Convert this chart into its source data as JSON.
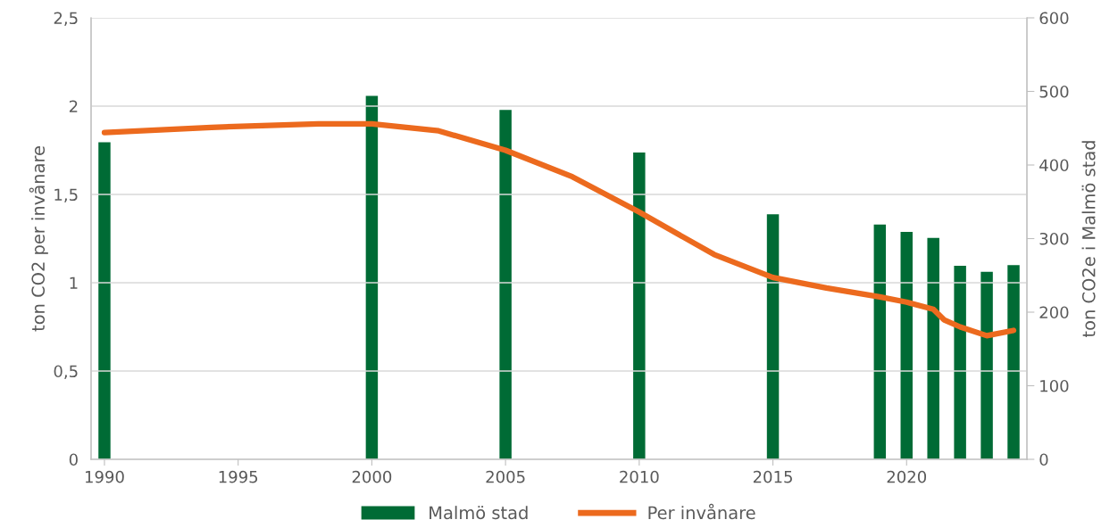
{
  "chart_data": {
    "type": "bar",
    "ylabel": "ton CO2 per invånare",
    "y2label": "ton CO2e i Malmö stad",
    "x": [
      1990,
      2000,
      2005,
      2010,
      2015,
      2019,
      2020,
      2021,
      2022,
      2023,
      2024
    ],
    "series": [
      {
        "name": "Malmö stad",
        "type": "bar",
        "axis": "y2",
        "color": "#006b35",
        "values": [
          431,
          494,
          475,
          417,
          333,
          319,
          309,
          301,
          263,
          255,
          264
        ]
      },
      {
        "name": "Per invånare",
        "type": "line",
        "color": "#ec6a1e",
        "x": [
          1990,
          1994,
          1998,
          2000,
          2002.5,
          2005,
          2007.5,
          2010,
          2012.8,
          2015,
          2017,
          2019,
          2020,
          2021,
          2021.4,
          2022,
          2023,
          2024
        ],
        "values": [
          1.85,
          1.88,
          1.9,
          1.9,
          1.86,
          1.75,
          1.6,
          1.4,
          1.16,
          1.03,
          0.97,
          0.92,
          0.89,
          0.85,
          0.79,
          0.75,
          0.7,
          0.73
        ]
      }
    ],
    "xlim": [
      1989.5,
      2024.5
    ],
    "xticks": [
      1990,
      1995,
      2000,
      2005,
      2010,
      2015,
      2020
    ],
    "ylim": [
      0,
      2.5
    ],
    "yticks": [
      {
        "value": 0,
        "label": "0"
      },
      {
        "value": 0.5,
        "label": "0,5"
      },
      {
        "value": 1,
        "label": "1"
      },
      {
        "value": 1.5,
        "label": "1,5"
      },
      {
        "value": 2,
        "label": "2"
      },
      {
        "value": 2.5,
        "label": "2,5"
      }
    ],
    "y2lim": [
      0,
      600
    ],
    "y2ticks": [
      0,
      100,
      200,
      300,
      400,
      500,
      600
    ],
    "grid": "y",
    "legend": "bottom",
    "line_style": "solid"
  }
}
